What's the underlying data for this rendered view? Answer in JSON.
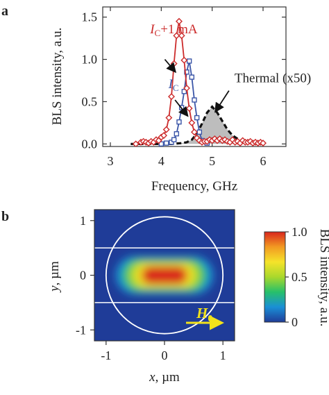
{
  "panel_labels": [
    "a",
    "b"
  ],
  "chart_data": [
    {
      "panel": "a",
      "type": "line",
      "xlabel": "Frequency, GHz",
      "ylabel": "BLS intensity, a.u.",
      "xlim": [
        2.85,
        6.45
      ],
      "ylim": [
        -0.03,
        1.62
      ],
      "xticks": [
        3,
        4,
        5,
        6
      ],
      "yticks": [
        0.0,
        0.5,
        1.0,
        1.5
      ],
      "ytick_labels": [
        "0.0",
        "0.5",
        "1.0",
        "1.5"
      ],
      "grid": false,
      "series": [
        {
          "color": "#cc2b2b",
          "marker": "diamond",
          "x": [
            3.5,
            3.6,
            3.65,
            3.7,
            3.75,
            3.8,
            3.85,
            3.9,
            3.95,
            4.0,
            4.05,
            4.1,
            4.15,
            4.2,
            4.25,
            4.3,
            4.35,
            4.4,
            4.45,
            4.5,
            4.55,
            4.6,
            4.65,
            4.7,
            4.75,
            4.8,
            4.85,
            4.9,
            4.95,
            5.0,
            5.05,
            5.1,
            5.15,
            5.2,
            5.25,
            5.3,
            5.35,
            5.4,
            5.45,
            5.5,
            5.55,
            5.6,
            5.65,
            5.7,
            5.75,
            5.8,
            5.85,
            5.9,
            5.95,
            6.0
          ],
          "y": [
            0.0,
            0.02,
            0.03,
            0.02,
            0.01,
            0.03,
            0.02,
            0.05,
            0.04,
            0.08,
            0.1,
            0.17,
            0.31,
            0.56,
            0.95,
            1.28,
            1.45,
            1.28,
            0.99,
            0.66,
            0.42,
            0.25,
            0.14,
            0.07,
            0.04,
            0.02,
            0.03,
            0.03,
            0.05,
            0.04,
            0.06,
            0.04,
            0.06,
            0.04,
            0.05,
            0.03,
            0.02,
            0.05,
            0.02,
            0.03,
            0.01,
            0.04,
            0.02,
            0.02,
            0.03,
            0.01,
            0.02,
            0.01,
            0.02,
            0.01
          ]
        },
        {
          "color": "#3b56a8",
          "marker": "square",
          "x": [
            4.0,
            4.1,
            4.2,
            4.25,
            4.3,
            4.35,
            4.4,
            4.45,
            4.5,
            4.55,
            4.6,
            4.65,
            4.7,
            4.75,
            4.8,
            4.9
          ],
          "y": [
            0.0,
            0.01,
            0.02,
            0.05,
            0.12,
            0.26,
            0.43,
            0.62,
            0.85,
            0.98,
            0.79,
            0.52,
            0.31,
            0.14,
            0.04,
            0.01
          ]
        },
        {
          "color": "#111111",
          "fill": "#bdbdbd",
          "style": "dashed",
          "x": [
            3.4,
            3.6,
            3.8,
            4.0,
            4.2,
            4.4,
            4.5,
            4.6,
            4.7,
            4.8,
            4.9,
            5.0,
            5.1,
            5.2,
            5.3,
            5.4,
            5.5,
            5.6,
            5.7,
            5.8,
            5.9,
            6.0
          ],
          "y": [
            0.0,
            0.0,
            0.0,
            0.0,
            0.0,
            0.01,
            0.02,
            0.05,
            0.12,
            0.24,
            0.37,
            0.44,
            0.37,
            0.27,
            0.17,
            0.1,
            0.06,
            0.03,
            0.02,
            0.01,
            0.0,
            0.0
          ]
        }
      ],
      "annotations": [
        {
          "text_main": "I",
          "text_sub": "C",
          "text_tail": "+1 mA",
          "color": "#cc2b2b",
          "at": [
            3.78,
            1.31
          ],
          "arrow_from": [
            4.07,
            1.0
          ],
          "arrow_to": [
            4.28,
            0.85
          ]
        },
        {
          "text_main": "I",
          "text_sub": "C",
          "text_tail": "",
          "color": "#3b56a8",
          "at": [
            4.14,
            0.66
          ],
          "arrow_from": [
            4.27,
            0.52
          ],
          "arrow_to": [
            4.52,
            0.33
          ]
        },
        {
          "text_main": "Thermal (x50)",
          "text_sub": "",
          "text_tail": "",
          "color": "#222222",
          "at": [
            5.44,
            0.73
          ],
          "arrow_from": [
            5.33,
            0.63
          ],
          "arrow_to": [
            5.06,
            0.38
          ]
        }
      ]
    },
    {
      "panel": "b",
      "type": "heatmap",
      "xlabel_var": "x",
      "xlabel_unit": ", µm",
      "ylabel_var": "y",
      "ylabel_unit": ", µm",
      "xlim": [
        -1.2,
        1.2
      ],
      "ylim": [
        -1.2,
        1.2
      ],
      "xticks": [
        -1,
        0,
        1
      ],
      "yticks": [
        -1,
        0,
        1
      ],
      "background_color": "#1f3c98",
      "spot": {
        "center": [
          0.0,
          0.0
        ],
        "half_width": 0.52,
        "half_height": 0.17,
        "peak": 1.0
      },
      "circle": {
        "center": [
          0.0,
          0.0
        ],
        "radius": 1.0,
        "color": "#ffffff"
      },
      "hlines": [
        0.5,
        -0.5
      ],
      "field_arrow": {
        "label_main": "H",
        "label_sub": "0",
        "color": "#f2e21a"
      },
      "colorbar": {
        "label": "BLS intensity, a.u.",
        "ticks": [
          0,
          0.5,
          1.0
        ],
        "tick_labels": [
          "0",
          "0.5",
          "1.0"
        ],
        "colors": [
          "#1f3c98",
          "#1a8fd6",
          "#27c06a",
          "#a9d82c",
          "#f5e32a",
          "#f29a22",
          "#d9251c"
        ]
      }
    }
  ]
}
